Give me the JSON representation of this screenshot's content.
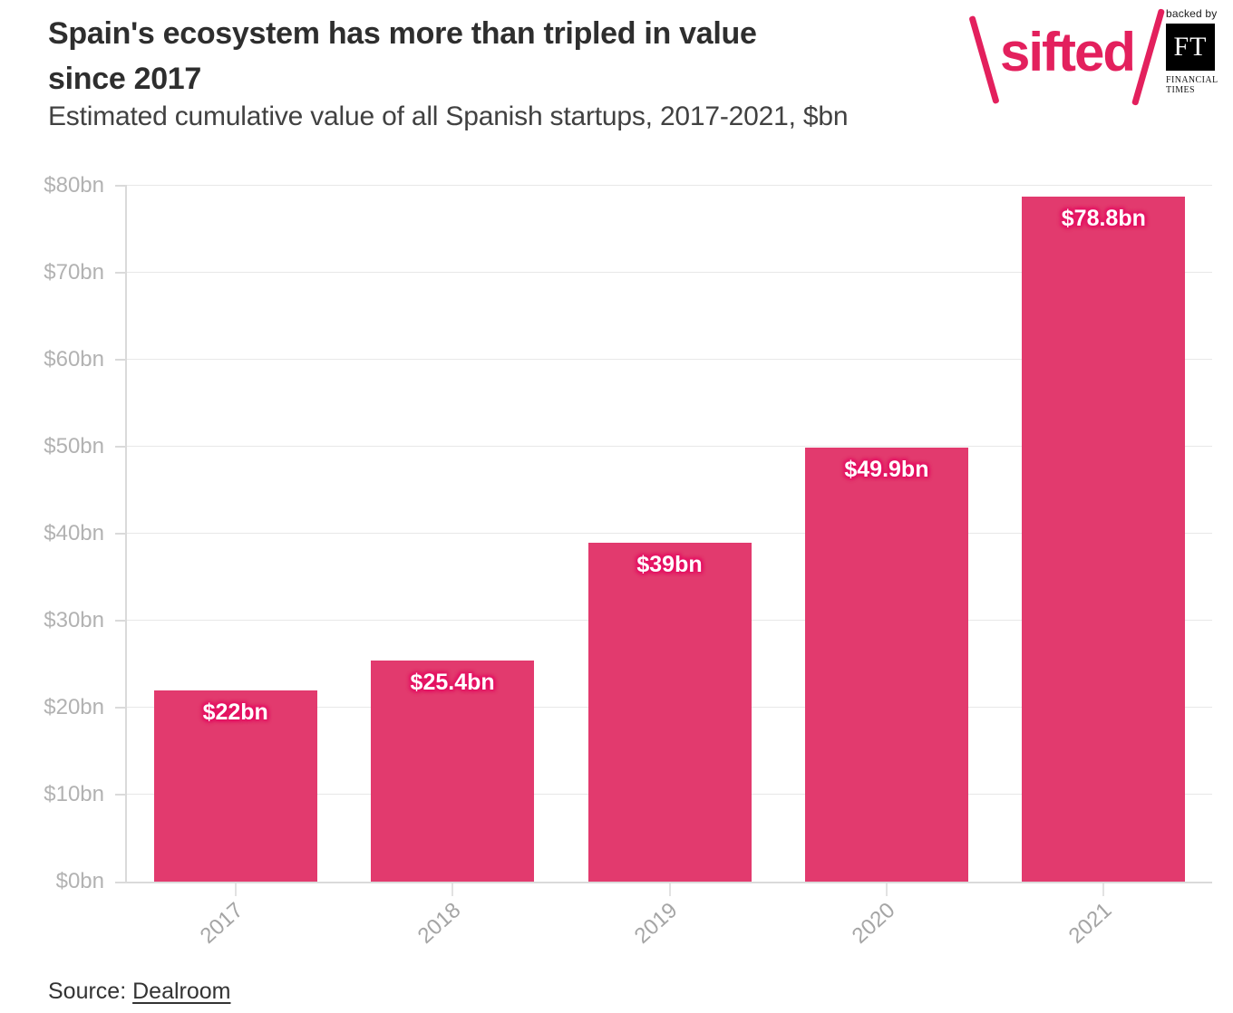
{
  "header": {
    "title_line1": "Spain's ecosystem has more than tripled in value",
    "title_line2": "since 2017",
    "subtitle": "Estimated cumulative value of all Spanish startups, 2017-2021, $bn"
  },
  "logo": {
    "brand": "sifted",
    "backed_by": "backed by",
    "ft_initials": "FT",
    "ft_name_line1": "FINANCIAL",
    "ft_name_line2": "TIMES",
    "brand_color": "#e3205d"
  },
  "chart_data": {
    "type": "bar",
    "title": "Spain's ecosystem has more than tripled in value since 2017",
    "subtitle": "Estimated cumulative value of all Spanish startups, 2017-2021, $bn",
    "categories": [
      "2017",
      "2018",
      "2019",
      "2020",
      "2021"
    ],
    "values": [
      22,
      25.4,
      39,
      49.9,
      78.8
    ],
    "bar_labels": [
      "$22bn",
      "$25.4bn",
      "$39bn",
      "$49.9bn",
      "$78.8bn"
    ],
    "xlabel": "",
    "ylabel": "",
    "ylim": [
      0,
      80
    ],
    "ytick_step": 10,
    "ytick_labels": [
      "$0bn",
      "$10bn",
      "$20bn",
      "$30bn",
      "$40bn",
      "$50bn",
      "$60bn",
      "$70bn",
      "$80bn"
    ],
    "grid": true,
    "legend": "none",
    "bar_color": "#e23a6e",
    "bar_label_color": "#ffffff",
    "bar_label_halo_color": "#e50f63",
    "gridline_color": "#e8e8e8",
    "axis_label_color": "#b2b2b2"
  },
  "footer": {
    "source_label": "Source: ",
    "source_link": "Dealroom"
  }
}
